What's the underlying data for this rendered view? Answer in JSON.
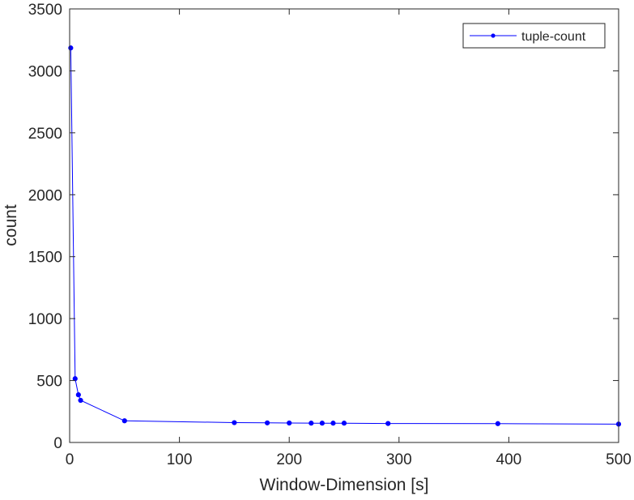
{
  "chart_data": {
    "type": "line",
    "title": "",
    "xlabel": "Window-Dimension [s]",
    "ylabel": "count",
    "xlim": [
      0,
      500
    ],
    "ylim": [
      0,
      3500
    ],
    "xticks": [
      0,
      100,
      200,
      300,
      400,
      500
    ],
    "yticks": [
      0,
      500,
      1000,
      1500,
      2000,
      2500,
      3000,
      3500
    ],
    "grid": false,
    "legend_position": "top-right",
    "series": [
      {
        "name": "tuple-count",
        "color": "#0000ff",
        "marker": "dot",
        "x": [
          1,
          5,
          8,
          10,
          50,
          150,
          180,
          200,
          220,
          230,
          240,
          250,
          290,
          390,
          500
        ],
        "y": [
          3185,
          515,
          385,
          340,
          175,
          160,
          158,
          157,
          156,
          156,
          156,
          156,
          153,
          152,
          148
        ]
      }
    ]
  }
}
